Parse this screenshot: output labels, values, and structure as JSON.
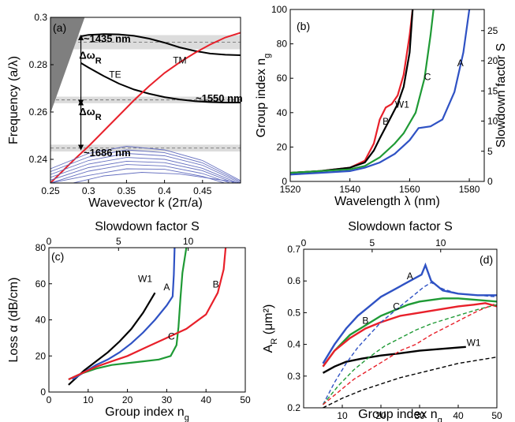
{
  "colors": {
    "black": "#000000",
    "red": "#e8202a",
    "green": "#1f9a35",
    "blue": "#2f52c4",
    "band": "#dcdcdc",
    "gray": "#7f7f7f",
    "lightblue": "#6670c0"
  },
  "chart_data": [
    {
      "id": "a",
      "type": "line",
      "panel_label": "(a)",
      "xlabel": "Wavevector k (2π/a)",
      "ylabel": "Frequency (a/λ)",
      "xlim": [
        0.25,
        0.5
      ],
      "ylim": [
        0.23,
        0.3
      ],
      "xticks": [
        0.25,
        0.3,
        0.35,
        0.4,
        0.45
      ],
      "xtick_labels": [
        "0.25",
        "0.3",
        "0.35",
        "0.4",
        "0.45"
      ],
      "yticks": [
        0.24,
        0.26,
        0.28,
        0.3
      ],
      "ytick_labels": [
        "0.24",
        "0.26",
        "0.28",
        "0.3"
      ],
      "bands": [
        {
          "y0": 0.2925,
          "y1": 0.2865,
          "label": "~1435 nm",
          "x": 0.3
        },
        {
          "y0": 0.2665,
          "y1": 0.2637,
          "label": "~1550 nm",
          "x": 0.42
        },
        {
          "y0": 0.2462,
          "y1": 0.2433,
          "label": "~1686 nm",
          "x": 0.3
        }
      ],
      "light_cone": [
        [
          0.25,
          0.3
        ],
        [
          0.295,
          0.3
        ],
        [
          0.25,
          0.2595
        ]
      ],
      "series": [
        {
          "name": "TE",
          "color": "black",
          "x": [
            0.29,
            0.3,
            0.32,
            0.34,
            0.36,
            0.38,
            0.4,
            0.42,
            0.44,
            0.46,
            0.48,
            0.5
          ],
          "y": [
            0.2807,
            0.2788,
            0.2752,
            0.272,
            0.2695,
            0.2677,
            0.2663,
            0.2653,
            0.2646,
            0.2642,
            0.264,
            0.264
          ]
        },
        {
          "name": "",
          "color": "black",
          "x": [
            0.29,
            0.3,
            0.32,
            0.34,
            0.36,
            0.38,
            0.4,
            0.42,
            0.44,
            0.46,
            0.48,
            0.5
          ],
          "y": [
            0.292,
            0.2926,
            0.2929,
            0.2928,
            0.2922,
            0.291,
            0.2893,
            0.2873,
            0.2858,
            0.2847,
            0.2842,
            0.284
          ]
        },
        {
          "name": "TM",
          "color": "red",
          "x": [
            0.25,
            0.28,
            0.3,
            0.32,
            0.34,
            0.36,
            0.38,
            0.4,
            0.42,
            0.44,
            0.46,
            0.48,
            0.5
          ],
          "y": [
            0.23,
            0.2395,
            0.2455,
            0.252,
            0.2585,
            0.265,
            0.271,
            0.2765,
            0.281,
            0.285,
            0.2885,
            0.2915,
            0.2935
          ]
        },
        {
          "name": "",
          "color": "lightblue",
          "x": [
            0.25,
            0.3,
            0.35,
            0.4,
            0.45,
            0.5
          ],
          "y": [
            0.236,
            0.2425,
            0.2455,
            0.244,
            0.2395,
            0.231
          ]
        },
        {
          "name": "",
          "color": "lightblue",
          "x": [
            0.25,
            0.3,
            0.35,
            0.4,
            0.45,
            0.5
          ],
          "y": [
            0.2348,
            0.241,
            0.244,
            0.2428,
            0.2385,
            0.2305
          ]
        },
        {
          "name": "",
          "color": "lightblue",
          "x": [
            0.25,
            0.3,
            0.35,
            0.4,
            0.45,
            0.5
          ],
          "y": [
            0.2336,
            0.2395,
            0.2425,
            0.2415,
            0.2375,
            0.23
          ]
        },
        {
          "name": "",
          "color": "lightblue",
          "x": [
            0.25,
            0.3,
            0.35,
            0.4,
            0.45,
            0.5
          ],
          "y": [
            0.2324,
            0.238,
            0.2408,
            0.24,
            0.2362,
            0.2295
          ]
        },
        {
          "name": "",
          "color": "lightblue",
          "x": [
            0.25,
            0.3,
            0.35,
            0.4,
            0.45,
            0.5
          ],
          "y": [
            0.2312,
            0.2365,
            0.2392,
            0.2386,
            0.2352,
            0.229
          ]
        },
        {
          "name": "",
          "color": "lightblue",
          "x": [
            0.25,
            0.3,
            0.35,
            0.4,
            0.45,
            0.5
          ],
          "y": [
            0.23,
            0.235,
            0.2378,
            0.2372,
            0.234,
            0.2285
          ]
        },
        {
          "name": "",
          "color": "lightblue",
          "x": [
            0.25,
            0.3,
            0.35,
            0.4,
            0.45,
            0.5
          ],
          "y": [
            0.23,
            0.2332,
            0.236,
            0.2358,
            0.2328,
            0.228
          ]
        },
        {
          "name": "",
          "color": "lightblue",
          "x": [
            0.28,
            0.32,
            0.37,
            0.42,
            0.47,
            0.5
          ],
          "y": [
            0.23,
            0.233,
            0.2345,
            0.2338,
            0.2315,
            0.23
          ]
        }
      ],
      "labels": [
        {
          "text": "TE",
          "x": 0.335,
          "y": 0.2745
        },
        {
          "text": "TM",
          "x": 0.42,
          "y": 0.2805
        }
      ],
      "arrows": [
        {
          "x": 0.29,
          "y0": 0.2915,
          "y1": 0.264,
          "label": "ΔωR",
          "label_y": 0.2838
        },
        {
          "x": 0.29,
          "y0": 0.264,
          "y1": 0.245,
          "label": "ΔωR",
          "label_y": 0.26
        }
      ]
    },
    {
      "id": "b",
      "type": "line",
      "panel_label": "(b)",
      "xlabel": "Wavelength λ (nm)",
      "ylabel": "Group index ng",
      "y2label": "Slowdown factor S",
      "xlim": [
        1520,
        1585
      ],
      "ylim": [
        0,
        100
      ],
      "y2lim": [
        0,
        28.5
      ],
      "xticks": [
        1520,
        1540,
        1560,
        1580
      ],
      "xtick_labels": [
        "1520",
        "1540",
        "1560",
        "1580"
      ],
      "yticks": [
        0,
        20,
        40,
        60,
        80,
        100
      ],
      "ytick_labels": [
        "0",
        "20",
        "40",
        "60",
        "80",
        "100"
      ],
      "y2ticks": [
        0,
        5,
        10,
        15,
        20,
        25
      ],
      "y2tick_labels": [
        "0",
        "5",
        "10",
        "15",
        "20",
        "25"
      ],
      "series": [
        {
          "name": "B",
          "color": "red",
          "x": [
            1520,
            1530,
            1540,
            1545,
            1548,
            1550,
            1552,
            1554,
            1556,
            1558,
            1560,
            1561
          ],
          "y": [
            5,
            6,
            8,
            12,
            22,
            36,
            43,
            45,
            50,
            62,
            85,
            100
          ]
        },
        {
          "name": "W1",
          "color": "black",
          "x": [
            1520,
            1530,
            1540,
            1545,
            1548,
            1550,
            1553,
            1556,
            1558,
            1560,
            1561
          ],
          "y": [
            5,
            6,
            8,
            11,
            18,
            25,
            35,
            45,
            55,
            75,
            100
          ]
        },
        {
          "name": "C",
          "color": "green",
          "x": [
            1520,
            1530,
            1540,
            1545,
            1550,
            1555,
            1558,
            1562,
            1565,
            1567,
            1568
          ],
          "y": [
            5,
            6,
            7,
            9,
            14,
            22,
            28,
            40,
            60,
            85,
            100
          ]
        },
        {
          "name": "A",
          "color": "blue",
          "x": [
            1520,
            1530,
            1540,
            1545,
            1550,
            1555,
            1560,
            1563,
            1567,
            1571,
            1575,
            1578,
            1580
          ],
          "y": [
            4,
            5,
            6,
            8,
            11,
            16,
            24,
            31,
            32,
            36,
            52,
            75,
            100
          ]
        }
      ],
      "labels": [
        {
          "text": "B",
          "x": 1552,
          "y": 33
        },
        {
          "text": "W1",
          "x": 1557.5,
          "y": 43
        },
        {
          "text": "C",
          "x": 1566,
          "y": 59
        },
        {
          "text": "A",
          "x": 1577,
          "y": 67
        }
      ]
    },
    {
      "id": "c",
      "type": "line",
      "panel_label": "(c)",
      "xlabel": "Group index ng",
      "ylabel": "Loss α (dB/cm)",
      "x2label": "Slowdown factor S",
      "xlim": [
        0,
        50
      ],
      "ylim": [
        0,
        80
      ],
      "x2lim": [
        0,
        14.1
      ],
      "xticks": [
        0,
        10,
        20,
        30,
        40,
        50
      ],
      "xtick_labels": [
        "0",
        "10",
        "20",
        "30",
        "40",
        "50"
      ],
      "yticks": [
        0,
        20,
        40,
        60,
        80
      ],
      "ytick_labels": [
        "0",
        "20",
        "40",
        "60",
        "80"
      ],
      "x2ticks": [
        0,
        5,
        10
      ],
      "x2tick_labels": [
        "0",
        "5",
        "10"
      ],
      "series": [
        {
          "name": "W1",
          "color": "black",
          "x": [
            5,
            7,
            9,
            12,
            15,
            18,
            21,
            24,
            27
          ],
          "y": [
            4,
            8,
            12,
            17,
            22,
            28,
            35,
            44,
            55
          ]
        },
        {
          "name": "A",
          "color": "blue",
          "x": [
            6,
            9,
            12,
            15,
            18,
            21,
            24,
            27,
            30,
            31.5,
            31.8,
            32
          ],
          "y": [
            7,
            11,
            15,
            18,
            22,
            27,
            33,
            40,
            48,
            53,
            65,
            80
          ]
        },
        {
          "name": "C",
          "color": "green",
          "x": [
            5,
            8,
            12,
            16,
            20,
            24,
            28,
            31,
            32.5,
            33,
            33.5,
            34,
            35
          ],
          "y": [
            7,
            10,
            13,
            15,
            16,
            17,
            18,
            20,
            26,
            36,
            52,
            66,
            80
          ]
        },
        {
          "name": "B",
          "color": "red",
          "x": [
            5,
            8,
            12,
            16,
            20,
            25,
            30,
            35,
            40,
            43,
            44.5,
            45
          ],
          "y": [
            7,
            10,
            14,
            17,
            20,
            25,
            30,
            35,
            43,
            55,
            68,
            80
          ]
        }
      ],
      "labels": [
        {
          "text": "W1",
          "x": 24.5,
          "y": 61
        },
        {
          "text": "A",
          "x": 30,
          "y": 56.5
        },
        {
          "text": "C",
          "x": 31.2,
          "y": 29
        },
        {
          "text": "B",
          "x": 42.5,
          "y": 58
        }
      ]
    },
    {
      "id": "d",
      "type": "line",
      "panel_label": "(d)",
      "xlabel": "Group index ng",
      "ylabel": "AR (μm²)",
      "x2label": "Slowdown factor S",
      "xlim": [
        0,
        50
      ],
      "ylim": [
        0.2,
        0.7
      ],
      "x2lim": [
        0,
        14.1
      ],
      "xticks": [
        10,
        20,
        30,
        40,
        50
      ],
      "xtick_labels": [
        "10",
        "20",
        "30",
        "40",
        "50"
      ],
      "yticks": [
        0.2,
        0.3,
        0.4,
        0.5,
        0.6,
        0.7
      ],
      "ytick_labels": [
        "0.2",
        "0.3",
        "0.4",
        "0.5",
        "0.6",
        "0.7"
      ],
      "x2ticks": [
        0,
        5,
        10
      ],
      "x2tick_labels": [
        "0",
        "5",
        "10"
      ],
      "series": [
        {
          "name": "A",
          "color": "blue",
          "x": [
            5,
            8,
            11,
            14,
            17,
            20,
            23,
            26,
            29,
            30.5,
            31.5,
            33,
            36,
            40,
            45,
            50
          ],
          "y": [
            0.34,
            0.4,
            0.45,
            0.49,
            0.52,
            0.55,
            0.57,
            0.59,
            0.61,
            0.62,
            0.65,
            0.6,
            0.57,
            0.56,
            0.555,
            0.555
          ]
        },
        {
          "name": "C",
          "color": "green",
          "x": [
            5,
            8,
            12,
            16,
            20,
            24,
            27,
            30,
            33,
            36,
            40,
            45,
            50
          ],
          "y": [
            0.33,
            0.38,
            0.43,
            0.46,
            0.49,
            0.51,
            0.525,
            0.535,
            0.54,
            0.545,
            0.545,
            0.54,
            0.535
          ]
        },
        {
          "name": "B",
          "color": "red",
          "x": [
            5,
            8,
            12,
            16,
            20,
            25,
            30,
            35,
            40,
            44,
            47,
            50
          ],
          "y": [
            0.33,
            0.38,
            0.42,
            0.45,
            0.47,
            0.49,
            0.5,
            0.51,
            0.52,
            0.525,
            0.53,
            0.52
          ]
        },
        {
          "name": "W1",
          "color": "black",
          "x": [
            5,
            8,
            11,
            15,
            20,
            25,
            30,
            35,
            40,
            42
          ],
          "y": [
            0.31,
            0.33,
            0.345,
            0.355,
            0.365,
            0.372,
            0.38,
            0.385,
            0.39,
            0.392
          ]
        },
        {
          "name": "",
          "color": "blue",
          "dashed": true,
          "x": [
            5,
            8,
            11,
            14,
            17,
            20,
            23,
            26,
            29,
            31,
            33,
            36,
            40,
            45,
            50
          ],
          "y": [
            0.21,
            0.28,
            0.34,
            0.39,
            0.43,
            0.47,
            0.5,
            0.53,
            0.56,
            0.58,
            0.595,
            0.575,
            0.56,
            0.555,
            0.55
          ]
        },
        {
          "name": "",
          "color": "green",
          "dashed": true,
          "x": [
            5,
            9,
            13,
            17,
            21,
            25,
            29,
            33,
            37,
            41,
            45,
            50
          ],
          "y": [
            0.21,
            0.27,
            0.32,
            0.36,
            0.395,
            0.42,
            0.445,
            0.465,
            0.48,
            0.495,
            0.51,
            0.525
          ]
        },
        {
          "name": "",
          "color": "red",
          "dashed": true,
          "x": [
            5,
            9,
            13,
            17,
            21,
            25,
            29,
            33,
            37,
            41,
            45,
            50
          ],
          "y": [
            0.21,
            0.25,
            0.29,
            0.32,
            0.35,
            0.38,
            0.4,
            0.43,
            0.455,
            0.48,
            0.505,
            0.53
          ]
        },
        {
          "name": "",
          "color": "black",
          "dashed": true,
          "x": [
            5,
            10,
            15,
            20,
            25,
            30,
            35,
            40,
            45,
            50
          ],
          "y": [
            0.2,
            0.23,
            0.255,
            0.275,
            0.295,
            0.31,
            0.325,
            0.34,
            0.35,
            0.36
          ]
        }
      ],
      "labels": [
        {
          "text": "A",
          "x": 27.5,
          "y": 0.605
        },
        {
          "text": "C",
          "x": 24,
          "y": 0.51
        },
        {
          "text": "B",
          "x": 16,
          "y": 0.465
        },
        {
          "text": "W1",
          "x": 44,
          "y": 0.395
        }
      ]
    }
  ]
}
